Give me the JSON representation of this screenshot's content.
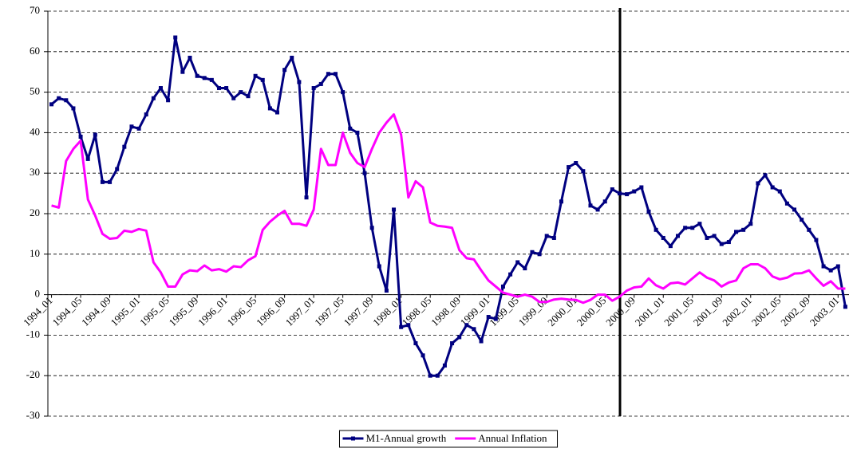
{
  "chart_data": {
    "type": "line",
    "categories": [
      "1994_01",
      null,
      null,
      null,
      "1994_05",
      null,
      null,
      null,
      "1994_09",
      null,
      null,
      null,
      "1995_01",
      null,
      null,
      null,
      "1995_05",
      null,
      null,
      null,
      "1995_09",
      null,
      null,
      null,
      "1996_01",
      null,
      null,
      null,
      "1996_05",
      null,
      null,
      null,
      "1996_09",
      null,
      null,
      null,
      "1997_01",
      null,
      null,
      null,
      "1997_05",
      null,
      null,
      null,
      "1997_09",
      null,
      null,
      null,
      "1998_01",
      null,
      null,
      null,
      "1998_05",
      null,
      null,
      null,
      "1998_09",
      null,
      null,
      null,
      "1999_01",
      null,
      null,
      null,
      "1999_05",
      null,
      null,
      null,
      "1999_09",
      null,
      null,
      null,
      "2000_01",
      null,
      null,
      null,
      "2000_05",
      null,
      null,
      null,
      "2000_09",
      null,
      null,
      null,
      "2001_01",
      null,
      null,
      null,
      "2001_05",
      null,
      null,
      null,
      "2001_09",
      null,
      null,
      null,
      "2002_01",
      null,
      null,
      null,
      "2002_05",
      null,
      null,
      null,
      "2002_09",
      null,
      null,
      null,
      "2003_01",
      null
    ],
    "series": [
      {
        "name": "M1-Annual growth",
        "color": "#000080",
        "markers": true,
        "values": [
          47,
          48.5,
          48,
          46,
          39,
          33.5,
          39.5,
          27.8,
          27.8,
          31,
          36.5,
          41.5,
          41,
          44.5,
          48.5,
          51,
          48,
          63.5,
          55,
          58.5,
          54,
          53.5,
          53,
          51,
          51,
          48.5,
          50,
          49,
          54,
          53,
          46,
          45,
          55.5,
          58.5,
          52.5,
          24,
          51,
          52,
          54.5,
          54.5,
          50,
          41,
          40,
          30,
          16.5,
          7,
          1,
          21,
          -8,
          -7.5,
          -12,
          -15,
          -20,
          -20,
          -17.5,
          -12,
          -10.5,
          -7.5,
          -8.5,
          -11.5,
          -5.5,
          -6,
          2,
          5,
          8,
          6.5,
          10.5,
          10,
          14.5,
          14,
          23,
          31.5,
          32.5,
          30.5,
          22,
          21,
          23,
          26,
          25,
          24.8,
          25.5,
          26.5,
          20.5,
          16,
          14,
          12,
          14.5,
          16.5,
          16.5,
          17.5,
          14,
          14.5,
          12.5,
          13,
          15.5,
          16,
          17.5,
          27.5,
          29.5,
          26.5,
          25.5,
          22.5,
          21,
          18.5,
          16,
          13.5,
          7,
          6,
          7,
          -3
        ]
      },
      {
        "name": "Annual Inflation",
        "color": "#ff00ff",
        "markers": false,
        "values": [
          22,
          21.5,
          33,
          36,
          38,
          23.5,
          19.5,
          15,
          13.8,
          14,
          15.8,
          15.5,
          16.2,
          15.8,
          8,
          5.5,
          2,
          2,
          5,
          6,
          5.8,
          7.2,
          6,
          6.3,
          5.7,
          7,
          6.8,
          8.5,
          9.5,
          16,
          18,
          19.5,
          20.7,
          17.5,
          17.5,
          17,
          21,
          36,
          32,
          32,
          40,
          35,
          32.5,
          31.5,
          36,
          40,
          42.5,
          44.5,
          39.5,
          24,
          28,
          26.5,
          17.8,
          17,
          16.8,
          16.5,
          11,
          9,
          8.7,
          6,
          3.5,
          2,
          0.5,
          0,
          -0.5,
          0,
          -0.5,
          -1.8,
          -1.8,
          -1.2,
          -1,
          -1.2,
          -1.3,
          -2,
          -1.3,
          0,
          0,
          -1.5,
          -0.5,
          1,
          1.8,
          2,
          4,
          2.3,
          1.5,
          2.8,
          3,
          2.5,
          4,
          5.5,
          4.2,
          3.5,
          2,
          3,
          3.5,
          6.5,
          7.5,
          7.5,
          6.5,
          4.5,
          3.8,
          4.2,
          5.2,
          5.3,
          6,
          4,
          2.2,
          3.3,
          1.5,
          1.5
        ]
      }
    ],
    "ylim": [
      -30,
      70
    ],
    "yticks": [
      -30,
      -20,
      -10,
      0,
      10,
      20,
      30,
      40,
      50,
      60,
      70
    ],
    "grid": true,
    "legend": "bottom"
  }
}
